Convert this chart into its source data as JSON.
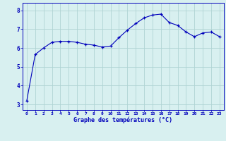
{
  "x": [
    0,
    1,
    2,
    3,
    4,
    5,
    6,
    7,
    8,
    9,
    10,
    11,
    12,
    13,
    14,
    15,
    16,
    17,
    18,
    19,
    20,
    21,
    22,
    23
  ],
  "y": [
    3.2,
    5.65,
    6.0,
    6.3,
    6.35,
    6.35,
    6.3,
    6.2,
    6.15,
    6.05,
    6.1,
    6.55,
    6.95,
    7.3,
    7.6,
    7.75,
    7.8,
    7.35,
    7.2,
    6.85,
    6.6,
    6.8,
    6.85,
    6.6
  ],
  "line_color": "#0000bb",
  "marker_color": "#0000bb",
  "bg_color": "#d8f0f0",
  "grid_color": "#b0d4d4",
  "axis_label_color": "#0000bb",
  "tick_color": "#0000bb",
  "xlabel": "Graphe des températures (°C)",
  "ylabel_ticks": [
    3,
    4,
    5,
    6,
    7,
    8
  ],
  "ylim": [
    2.7,
    8.4
  ],
  "xlim": [
    -0.5,
    23.5
  ],
  "xtick_labels": [
    "0",
    "1",
    "2",
    "3",
    "4",
    "5",
    "6",
    "7",
    "8",
    "9",
    "10",
    "11",
    "12",
    "13",
    "14",
    "15",
    "16",
    "17",
    "18",
    "19",
    "20",
    "21",
    "22",
    "23"
  ]
}
